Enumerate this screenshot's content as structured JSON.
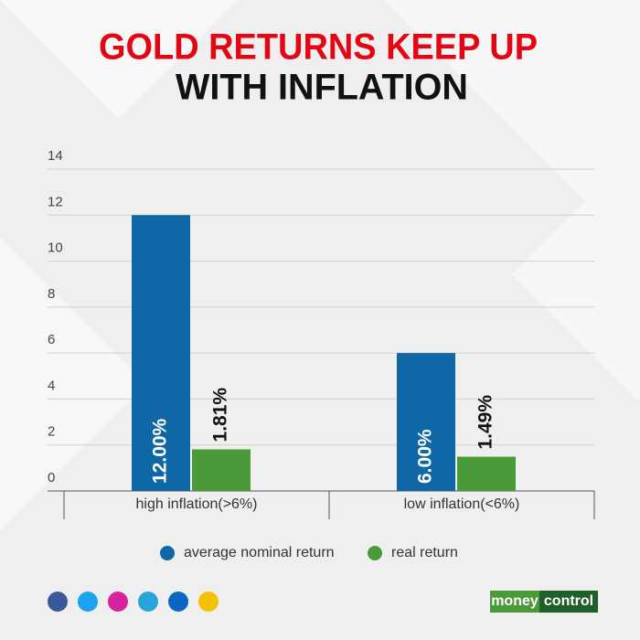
{
  "chart_data": {
    "type": "bar",
    "title_lines": [
      "GOLD RETURNS KEEP UP",
      "WITH INFLATION"
    ],
    "categories": [
      "high inflation(>6%)",
      "low inflation(<6%)"
    ],
    "series": [
      {
        "name": "average nominal return",
        "color": "#0f67a5",
        "values": [
          12.0,
          6.0
        ],
        "value_labels": [
          "12.00%",
          "6.00%"
        ]
      },
      {
        "name": "real return",
        "color": "#4a9a3a",
        "values": [
          1.81,
          1.49
        ],
        "value_labels": [
          "1.81%",
          "1.49%"
        ]
      }
    ],
    "ylim": [
      0,
      14
    ],
    "yticks": [
      0,
      2,
      4,
      6,
      8,
      10,
      12,
      14
    ],
    "grid": true
  },
  "logo_parts": [
    "money",
    "control"
  ]
}
